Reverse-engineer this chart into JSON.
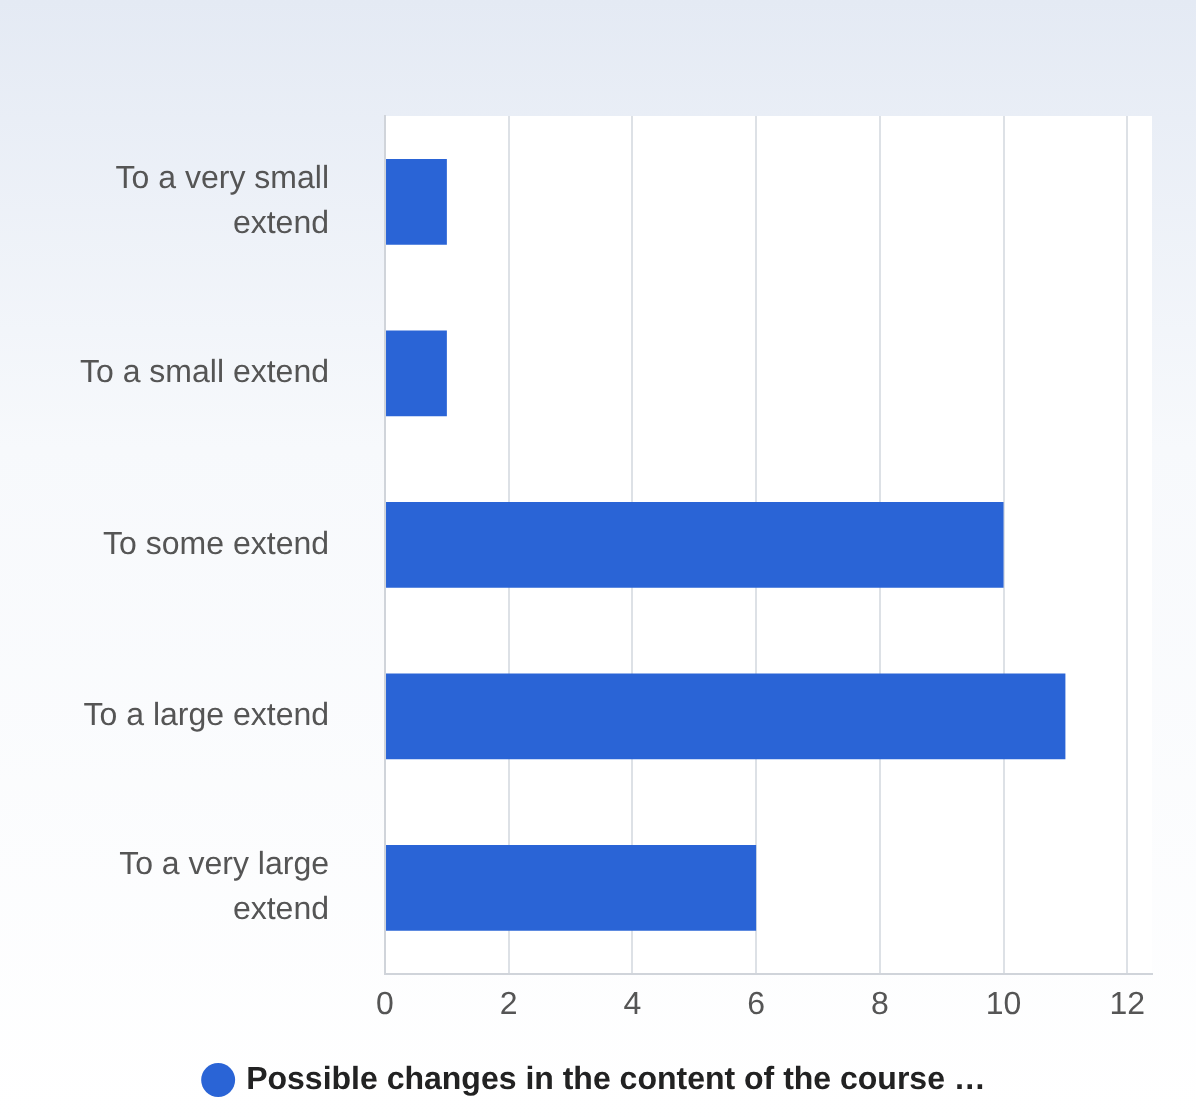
{
  "chart_data": {
    "type": "bar",
    "orientation": "horizontal",
    "categories": [
      "To a very small extend",
      "To a small extend",
      "To some extend",
      "To a large extend",
      "To a very large extend"
    ],
    "series": [
      {
        "name": "Possible changes in the content of the course …",
        "color": "#2a64d6",
        "values": [
          1,
          1,
          10,
          11,
          6
        ]
      }
    ],
    "xlim": [
      0,
      12.4
    ],
    "xticks": [
      0,
      2,
      4,
      6,
      8,
      10,
      12
    ],
    "grid": "x",
    "legend": "bottom"
  }
}
